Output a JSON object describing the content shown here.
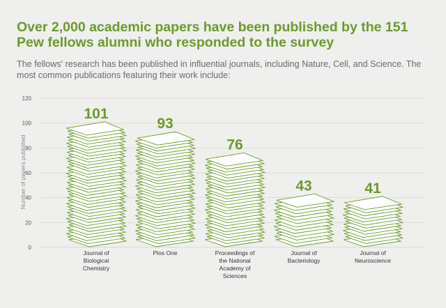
{
  "header": {
    "title": "Over 2,000 academic papers have been published by the 151 Pew fellows alumni who responded to the survey",
    "subtitle": "The fellows' research has been published in influential journals, including Nature, Cell, and Science. The most common publications featuring their work include:"
  },
  "colors": {
    "accent": "#6a9a2a",
    "background": "#efefed",
    "sheet": "#ffffff"
  },
  "chart_data": {
    "type": "bar",
    "title": "Over 2,000 academic papers have been published by the 151 Pew fellows alumni who responded to the survey",
    "ylabel": "Number of papers published",
    "xlabel": "",
    "ylim": [
      0,
      120
    ],
    "yticks": [
      0,
      20,
      40,
      60,
      80,
      100,
      120
    ],
    "grid": true,
    "categories": [
      [
        "Journal of",
        "Biological",
        "Chemistry"
      ],
      [
        "Plos One"
      ],
      [
        "Proceedings of",
        "the National",
        "Academy of",
        "Sciences"
      ],
      [
        "Journal of",
        "Bacteriology"
      ],
      [
        "Journal of",
        "Neuroscience"
      ]
    ],
    "values": [
      101,
      93,
      76,
      43,
      41
    ]
  }
}
